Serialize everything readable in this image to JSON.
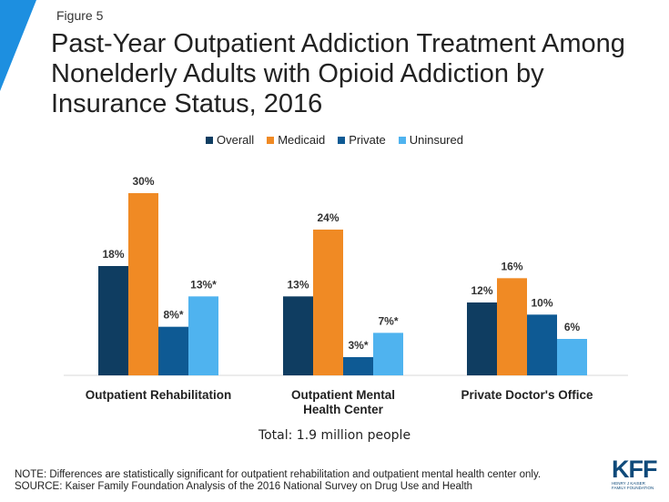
{
  "figure_label": "Figure 5",
  "title": "Past-Year Outpatient Addiction Treatment Among Nonelderly Adults with Opioid Addiction by Insurance Status, 2016",
  "total_text": "Total: 1.9 million people",
  "note_line1": "NOTE: Differences are statistically significant for outpatient rehabilitation and outpatient mental health center only.",
  "note_line2": "SOURCE: Kaiser Family Foundation Analysis of the 2016 National Survey on Drug Use and Health",
  "logo": {
    "main": "KFF",
    "line1": "HENRY J KAISER",
    "line2": "FAMILY FOUNDATION"
  },
  "colors": {
    "accent": "#1d8fe0"
  },
  "chart_data": {
    "type": "bar",
    "categories": [
      [
        "Outpatient Rehabilitation"
      ],
      [
        "Outpatient Mental",
        "Health Center"
      ],
      [
        "Private Doctor's Office"
      ]
    ],
    "series": [
      {
        "name": "Overall",
        "color": "#0f3d61",
        "values": [
          18,
          13,
          12
        ],
        "labels": [
          "18%",
          "13%",
          "12%"
        ]
      },
      {
        "name": "Medicaid",
        "color": "#f08a24",
        "values": [
          30,
          24,
          16
        ],
        "labels": [
          "30%",
          "24%",
          "16%"
        ]
      },
      {
        "name": "Private",
        "color": "#0e5a94",
        "values": [
          8,
          3,
          10
        ],
        "labels": [
          "8%*",
          "3%*",
          "10%"
        ]
      },
      {
        "name": "Uninsured",
        "color": "#4fb3ef",
        "values": [
          13,
          7,
          6
        ],
        "labels": [
          "13%*",
          "7%*",
          "6%"
        ]
      }
    ],
    "ylim": [
      0,
      30
    ],
    "legend": "top-center",
    "grid": false
  }
}
